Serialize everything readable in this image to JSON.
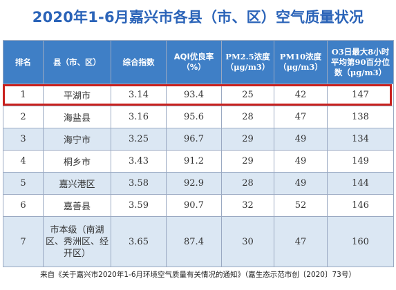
{
  "title": "2020年1-6月嘉兴市各县（市、区）空气质量状况",
  "table": {
    "headers": [
      "排名",
      "县（市、区）",
      "综合指数",
      "AQI优良率（%）",
      "PM2.5浓度（μg/m3）",
      "PM10浓度（μg/m3）",
      "O3日最大8小时平均第90百分位数（μg/m3）"
    ],
    "rows": [
      {
        "rank": "1",
        "county": "平湖市",
        "index": "3.14",
        "aqi": "93.4",
        "pm25": "25",
        "pm10": "42",
        "o3": "147"
      },
      {
        "rank": "2",
        "county": "海盐县",
        "index": "3.16",
        "aqi": "95.6",
        "pm25": "28",
        "pm10": "47",
        "o3": "138"
      },
      {
        "rank": "3",
        "county": "海宁市",
        "index": "3.25",
        "aqi": "96.7",
        "pm25": "29",
        "pm10": "49",
        "o3": "134"
      },
      {
        "rank": "4",
        "county": "桐乡市",
        "index": "3.43",
        "aqi": "91.2",
        "pm25": "29",
        "pm10": "49",
        "o3": "149"
      },
      {
        "rank": "5",
        "county": "嘉兴港区",
        "index": "3.58",
        "aqi": "92.9",
        "pm25": "28",
        "pm10": "49",
        "o3": "144"
      },
      {
        "rank": "6",
        "county": "嘉善县",
        "index": "3.59",
        "aqi": "90.7",
        "pm25": "32",
        "pm10": "52",
        "o3": "146"
      },
      {
        "rank": "7",
        "county": "市本级（南湖区、秀洲区、经开区）",
        "index": "3.65",
        "aqi": "87.4",
        "pm25": "30",
        "pm10": "47",
        "o3": "160"
      }
    ]
  },
  "footer": "来自《关于嘉兴市2020年1-6月环境空气质量有关情况的通知》（嘉生态示范市创〔2020〕73号）",
  "colors": {
    "title": "#2a63b8",
    "header_bg": "#3f7fc6",
    "stripe": "#dbe7f3",
    "highlight": "#c9201d"
  }
}
